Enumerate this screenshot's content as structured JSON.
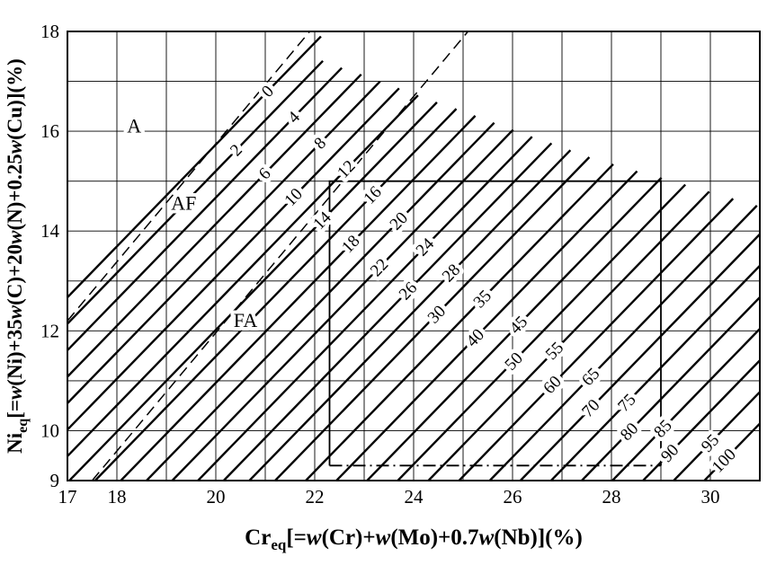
{
  "page": {
    "background": "#ffffff",
    "ink": "#000000"
  },
  "chart_data": {
    "type": "line",
    "description": "WRC-1992 constitution diagram with iso-Ferrite-Number lines and solidification mode regions",
    "x_axis": {
      "min": 17,
      "max": 31,
      "grid_step": 1,
      "tick_labels": [
        17,
        18,
        20,
        22,
        24,
        26,
        28,
        30
      ],
      "title_parts": [
        {
          "t": "Cr"
        },
        {
          "t": "eq",
          "sub": true
        },
        {
          "t": "[="
        },
        {
          "t": "w",
          "it": true
        },
        {
          "t": "(Cr)+"
        },
        {
          "t": "w",
          "it": true
        },
        {
          "t": "(Mo)+0.7"
        },
        {
          "t": "w",
          "it": true
        },
        {
          "t": "(Nb)](%)"
        }
      ]
    },
    "y_axis": {
      "min": 9,
      "max": 18,
      "grid_step": 1,
      "tick_labels": [
        9,
        10,
        12,
        14,
        16,
        18
      ],
      "title_parts": [
        {
          "t": "Ni"
        },
        {
          "t": "eq",
          "sub": true
        },
        {
          "t": "[="
        },
        {
          "t": "w",
          "it": true
        },
        {
          "t": "(Ni)+35"
        },
        {
          "t": "w",
          "it": true
        },
        {
          "t": "(C)+20"
        },
        {
          "t": "w",
          "it": true
        },
        {
          "t": "(N)+0.25"
        },
        {
          "t": "w",
          "it": true
        },
        {
          "t": "(Cu)](%)"
        }
      ]
    },
    "ferrite_number_lines": {
      "slope_dNi_per_dCr": 1.02,
      "label_rotation_deg": -46,
      "lines": [
        {
          "fn": 0,
          "cr_at_ni9": 13.4,
          "top_ni": 17.9,
          "label_ni": 16.8
        },
        {
          "fn": 2,
          "cr_at_ni9": 13.92,
          "top_ni": 17.41,
          "label_ni": 15.62
        },
        {
          "fn": 4,
          "cr_at_ni9": 14.44,
          "top_ni": 17.27,
          "label_ni": 16.28
        },
        {
          "fn": 6,
          "cr_at_ni9": 14.96,
          "top_ni": 17.14,
          "label_ni": 15.15
        },
        {
          "fn": 8,
          "cr_at_ni9": 15.48,
          "top_ni": 17.0,
          "label_ni": 15.76
        },
        {
          "fn": 10,
          "cr_at_ni9": 16.0,
          "top_ni": 16.86,
          "label_ni": 14.68
        },
        {
          "fn": 12,
          "cr_at_ni9": 16.52,
          "top_ni": 16.72,
          "label_ni": 15.24
        },
        {
          "fn": 14,
          "cr_at_ni9": 17.04,
          "top_ni": 16.58,
          "label_ni": 14.21
        },
        {
          "fn": 16,
          "cr_at_ni9": 17.56,
          "top_ni": 16.45,
          "label_ni": 14.72
        },
        {
          "fn": 18,
          "cr_at_ni9": 18.08,
          "top_ni": 16.31,
          "label_ni": 13.74
        },
        {
          "fn": 20,
          "cr_at_ni9": 18.6,
          "top_ni": 16.17,
          "label_ni": 14.2
        },
        {
          "fn": 22,
          "cr_at_ni9": 19.12,
          "top_ni": 16.03,
          "label_ni": 13.27
        },
        {
          "fn": 24,
          "cr_at_ni9": 19.64,
          "top_ni": 15.89,
          "label_ni": 13.68
        },
        {
          "fn": 26,
          "cr_at_ni9": 20.16,
          "top_ni": 15.76,
          "label_ni": 12.8
        },
        {
          "fn": 28,
          "cr_at_ni9": 20.68,
          "top_ni": 15.62,
          "label_ni": 13.16
        },
        {
          "fn": 30,
          "cr_at_ni9": 21.2,
          "top_ni": 15.48,
          "label_ni": 12.33
        },
        {
          "fn": 35,
          "cr_at_ni9": 21.82,
          "top_ni": 15.34,
          "label_ni": 12.64
        },
        {
          "fn": 40,
          "cr_at_ni9": 22.44,
          "top_ni": 15.2,
          "label_ni": 11.86
        },
        {
          "fn": 45,
          "cr_at_ni9": 23.06,
          "top_ni": 15.07,
          "label_ni": 12.12
        },
        {
          "fn": 50,
          "cr_at_ni9": 23.68,
          "top_ni": 14.93,
          "label_ni": 11.39
        },
        {
          "fn": 55,
          "cr_at_ni9": 24.3,
          "top_ni": 14.79,
          "label_ni": 11.6
        },
        {
          "fn": 60,
          "cr_at_ni9": 24.92,
          "top_ni": 14.65,
          "label_ni": 10.92
        },
        {
          "fn": 65,
          "cr_at_ni9": 25.54,
          "top_ni": 14.51,
          "label_ni": 11.08
        },
        {
          "fn": 70,
          "cr_at_ni9": 26.16,
          "top_ni": 14.38,
          "label_ni": 10.45
        },
        {
          "fn": 75,
          "cr_at_ni9": 26.78,
          "top_ni": 14.24,
          "label_ni": 10.56
        },
        {
          "fn": 80,
          "cr_at_ni9": 27.4,
          "top_ni": 14.1,
          "label_ni": 9.98
        },
        {
          "fn": 85,
          "cr_at_ni9": 28.02,
          "top_ni": 13.96,
          "label_ni": 10.04
        },
        {
          "fn": 90,
          "cr_at_ni9": 28.64,
          "top_ni": 13.82,
          "label_ni": 9.55
        },
        {
          "fn": 95,
          "cr_at_ni9": 29.26,
          "top_ni": 13.69,
          "label_ni": 9.75
        },
        {
          "fn": 100,
          "cr_at_ni9": 29.88,
          "top_ni": 13.54,
          "label_ni": 9.4
        }
      ]
    },
    "boundaries": [
      {
        "name": "A-AF-boundary",
        "from": [
          17.0,
          12.2
        ],
        "to": [
          21.9,
          18.0
        ],
        "style": "dashed"
      },
      {
        "name": "AF-FA-boundary",
        "from": [
          17.5,
          9.0
        ],
        "to": [
          25.1,
          18.0
        ],
        "style": "dashed"
      }
    ],
    "region_labels": [
      {
        "text": "A",
        "cr": 18.35,
        "ni": 16.1
      },
      {
        "text": "AF",
        "cr": 19.35,
        "ni": 14.55
      },
      {
        "text": "FA",
        "cr": 20.6,
        "ni": 12.2
      }
    ],
    "box": {
      "cr_min": 22.3,
      "cr_max": 29.0,
      "ni_min": 9.3,
      "ni_max": 15.0,
      "bottom_edge_style": "dash-dot"
    },
    "legend_position": "none",
    "grid": true
  }
}
